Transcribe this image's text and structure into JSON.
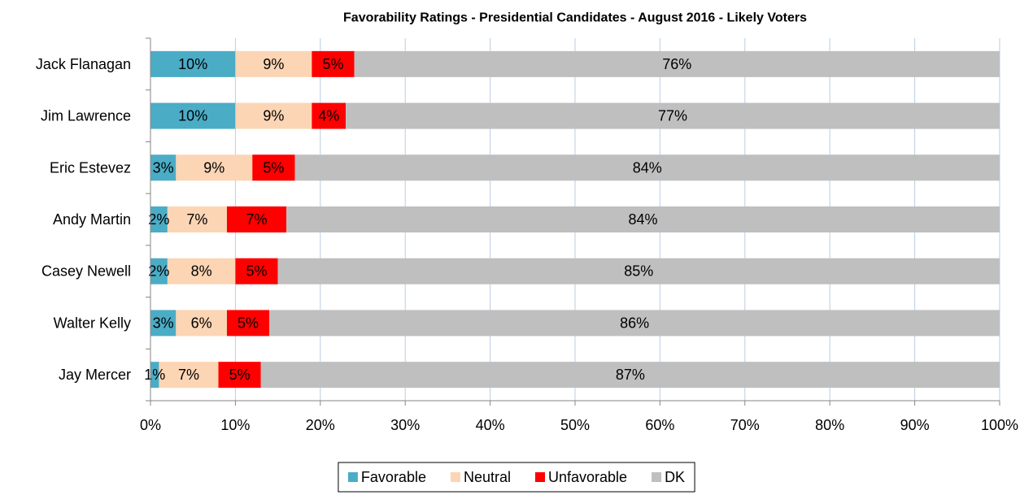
{
  "chart_data": {
    "type": "stacked_barh",
    "title": "Favorability Ratings - Presidential Candidates - August 2016 - Likely Voters",
    "categories": [
      "Jack Flanagan",
      "Jim Lawrence",
      "Eric Estevez",
      "Andy Martin",
      "Casey Newell",
      "Walter Kelly",
      "Jay Mercer"
    ],
    "series": [
      {
        "name": "Favorable",
        "color": "#4bacc6",
        "values": [
          10,
          10,
          3,
          2,
          2,
          3,
          1
        ],
        "value_labels": [
          "10%",
          "10%",
          "3%",
          "2%",
          "2%",
          "3%",
          "1%"
        ]
      },
      {
        "name": "Neutral",
        "color": "#fcd5b5",
        "values": [
          9,
          9,
          9,
          7,
          8,
          6,
          7
        ],
        "value_labels": [
          "9%",
          "9%",
          "9%",
          "7%",
          "8%",
          "6%",
          "7%"
        ]
      },
      {
        "name": "Unfavorable",
        "color": "#ff0000",
        "values": [
          5,
          4,
          5,
          7,
          5,
          5,
          5
        ],
        "value_labels": [
          "5%",
          "4%",
          "5%",
          "7%",
          "5%",
          "5%",
          "5%"
        ]
      },
      {
        "name": "DK",
        "color": "#bfbfbf",
        "values": [
          76,
          77,
          84,
          84,
          85,
          86,
          87
        ],
        "value_labels": [
          "76%",
          "77%",
          "84%",
          "84%",
          "85%",
          "86%",
          "87%"
        ]
      }
    ],
    "xlim": [
      0,
      100
    ],
    "xticks": [
      {
        "value": 0,
        "label": "0%"
      },
      {
        "value": 10,
        "label": "10%"
      },
      {
        "value": 20,
        "label": "20%"
      },
      {
        "value": 30,
        "label": "30%"
      },
      {
        "value": 40,
        "label": "40%"
      },
      {
        "value": 50,
        "label": "50%"
      },
      {
        "value": 60,
        "label": "60%"
      },
      {
        "value": 70,
        "label": "70%"
      },
      {
        "value": 80,
        "label": "80%"
      },
      {
        "value": 90,
        "label": "90%"
      },
      {
        "value": 100,
        "label": "100%"
      }
    ],
    "grid": true,
    "legend": "bottom"
  }
}
